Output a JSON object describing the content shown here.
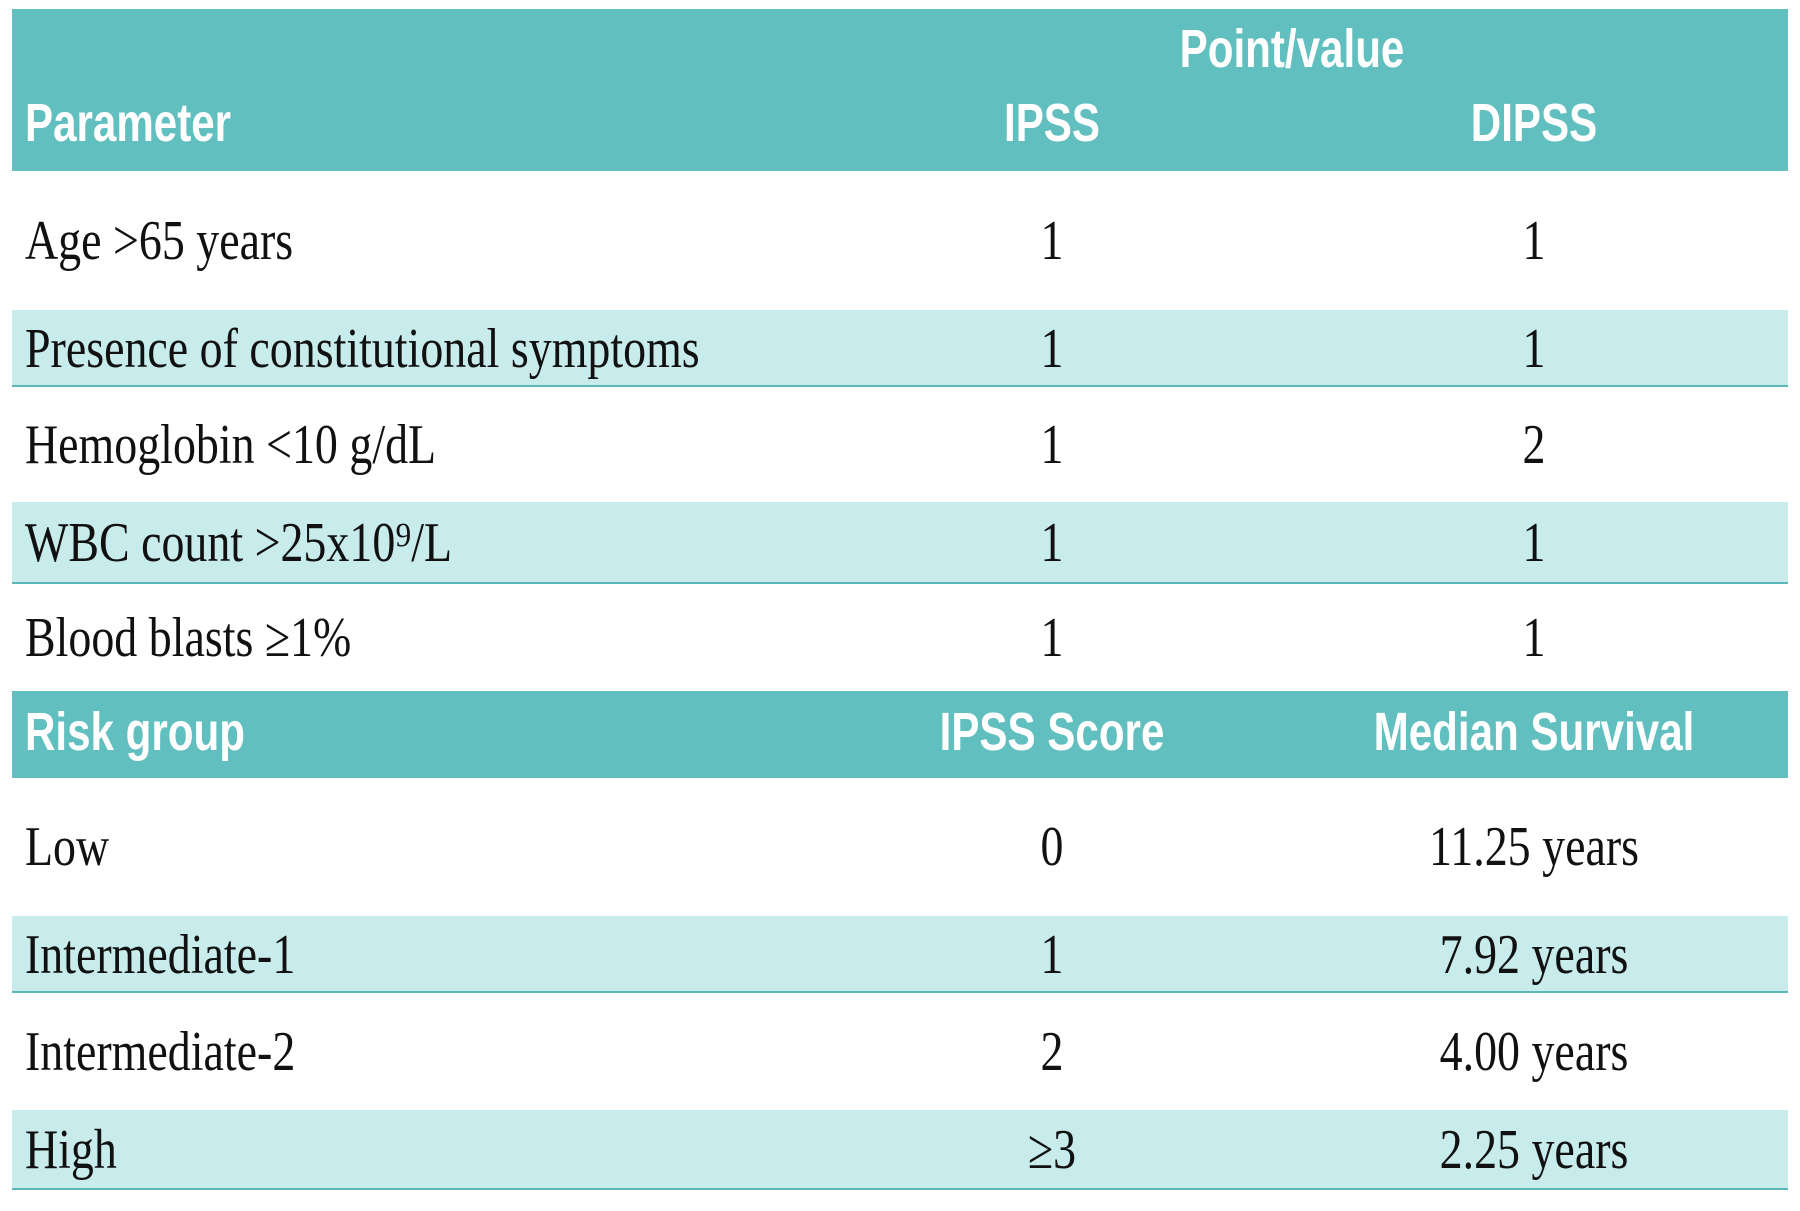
{
  "table1": {
    "header": {
      "group": "Point/value",
      "columns": [
        "Parameter",
        "IPSS",
        "DIPSS"
      ]
    },
    "rows": [
      [
        "Age >65 years",
        1,
        1
      ],
      [
        "Presence of constitutional symptoms",
        1,
        1
      ],
      [
        "Hemoglobin <10 g/dL",
        1,
        2
      ],
      [
        "WBC count >25x10⁹/L",
        1,
        1
      ],
      [
        "Blood blasts ≥1%",
        1,
        1
      ]
    ]
  },
  "table2": {
    "columns": [
      "Risk group",
      "IPSS Score",
      "Median Survival"
    ],
    "rows": [
      [
        "Low",
        0,
        "11.25 years"
      ],
      [
        "Intermediate-1",
        1,
        "7.92 years"
      ],
      [
        "Intermediate-2",
        2,
        "4.00 years"
      ],
      [
        "High",
        "≥3",
        "2.25 years"
      ]
    ]
  }
}
